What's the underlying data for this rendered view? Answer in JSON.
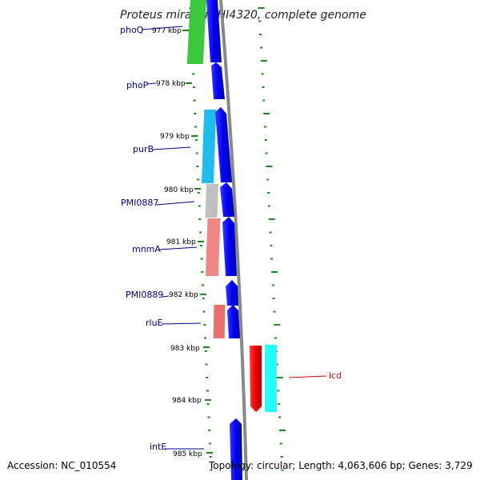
{
  "title": "Proteus mirabilis HI4320, complete genome",
  "accession": "Accession: NC_010554",
  "summary": "Topology: circular; Length: 4,063,606 bp; Genes: 3,729",
  "ticks": [
    "977 kbp",
    "978 kbp",
    "979 kbp",
    "980 kbp",
    "981 kbp",
    "982 kbp",
    "983 kbp",
    "984 kbp",
    "985 kbp"
  ],
  "gene_labels": [
    {
      "name": "phoQ",
      "color": "#00008b"
    },
    {
      "name": "phoP",
      "color": "#00008b"
    },
    {
      "name": "purB",
      "color": "#00008b"
    },
    {
      "name": "PMI0887",
      "color": "#00008b"
    },
    {
      "name": "mnmA",
      "color": "#00008b"
    },
    {
      "name": "PMI0889",
      "color": "#00008b"
    },
    {
      "name": "rluE",
      "color": "#00008b"
    },
    {
      "name": "icd",
      "color": "#d40000"
    },
    {
      "name": "intE",
      "color": "#00008b"
    }
  ],
  "colors": {
    "cds_blue": "#0000ee",
    "cds_red": "#ee0000",
    "backbone": "#888888",
    "tick_green": "#1a8a1a",
    "cog_green": "#3cc83c",
    "cog_lightblue": "#22bbee",
    "cog_grey": "#c0c0c0",
    "cog_pink": "#f08888",
    "cog_salmon": "#e87070",
    "cog_cyan": "#22ffff"
  }
}
